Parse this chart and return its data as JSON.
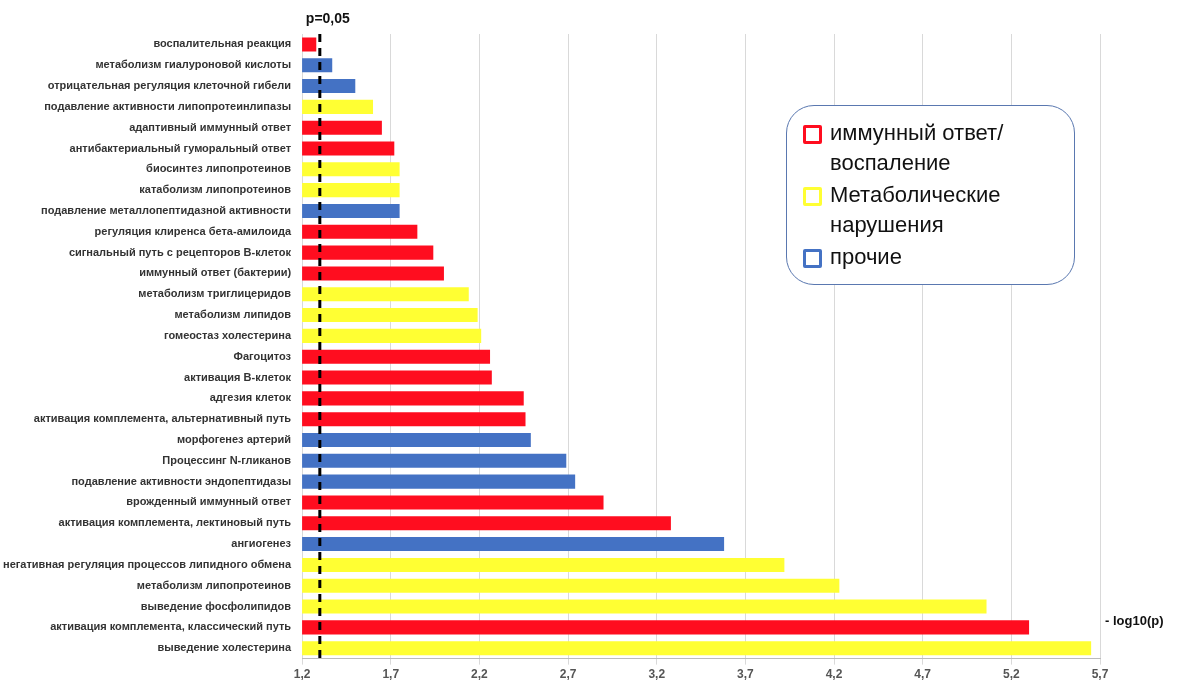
{
  "chart_data": {
    "type": "bar",
    "orientation": "horizontal",
    "xlabel": "- log10(p)",
    "categories": [
      "воспалительная реакция",
      "метаболизм гиалуроновой кислоты",
      "отрицательная регуляция клеточной гибели",
      "подавление активности липопротеинлипазы",
      "адаптивный иммунный ответ",
      "антибактериальный гуморальный ответ",
      "биосинтез липопротеинов",
      "катаболизм липопротеинов",
      "подавление металлопептидазной активности",
      "регуляция клиренса бета-амилоида",
      "сигнальный путь с рецепторов В-клеток",
      "иммунный ответ (бактерии)",
      "метаболизм триглицеридов",
      "метаболизм липидов",
      "гомеостаз холестерина",
      "Фагоцитоз",
      "активация В-клеток",
      "адгезия клеток",
      "активация комплемента, альтернативный путь",
      "морфогенез артерий",
      "Процессинг N-гликанов",
      "подавление активности эндопептидазы",
      "врожденный иммунный ответ",
      "активация комплемента, лектиновый путь",
      "ангиогенез",
      "негативная регуляция процессов липидного обмена",
      "метаболизм липопротеинов",
      "выведение фосфолипидов",
      "активация комплемента, классический путь",
      "выведение холестерина"
    ],
    "series": [
      {
        "name": "иммунный ответ/воспаление",
        "color": "#ff0d1f",
        "values": [
          1.28,
          null,
          null,
          null,
          1.65,
          1.72,
          null,
          null,
          null,
          1.85,
          1.94,
          2.0,
          null,
          null,
          null,
          2.26,
          2.27,
          2.45,
          2.46,
          null,
          null,
          null,
          2.9,
          3.28,
          null,
          null,
          null,
          null,
          5.3,
          null
        ]
      },
      {
        "name": "Метаболические нарушения",
        "color": "#ffff33",
        "values": [
          null,
          null,
          null,
          1.6,
          null,
          null,
          1.75,
          1.75,
          null,
          null,
          null,
          null,
          2.14,
          2.19,
          2.21,
          null,
          null,
          null,
          null,
          null,
          null,
          null,
          null,
          null,
          null,
          3.92,
          4.23,
          5.06,
          null,
          5.65
        ]
      },
      {
        "name": "прочие",
        "color": "#4472c4",
        "values": [
          null,
          1.37,
          1.5,
          null,
          null,
          null,
          null,
          null,
          1.75,
          null,
          null,
          null,
          null,
          null,
          null,
          null,
          null,
          null,
          null,
          2.49,
          2.69,
          2.74,
          null,
          null,
          3.58,
          null,
          null,
          null,
          null,
          null
        ]
      }
    ],
    "xlim": [
      1.2,
      5.7
    ],
    "xticks": [
      {
        "value": 1.2,
        "label": "1,2"
      },
      {
        "value": 1.7,
        "label": "1,7"
      },
      {
        "value": 2.2,
        "label": "2,2"
      },
      {
        "value": 2.7,
        "label": "2,7"
      },
      {
        "value": 3.2,
        "label": "3,2"
      },
      {
        "value": 3.7,
        "label": "3,7"
      },
      {
        "value": 4.2,
        "label": "4,2"
      },
      {
        "value": 4.7,
        "label": "4,7"
      },
      {
        "value": 5.2,
        "label": "5,2"
      },
      {
        "value": 5.7,
        "label": "5,7"
      }
    ],
    "grid": "x",
    "legend": "right",
    "annotations": [
      "p=0,05"
    ],
    "ref_lines": [
      {
        "axis": "x",
        "value": 1.3,
        "color": "#000000",
        "line_style": "dashed"
      }
    ]
  }
}
